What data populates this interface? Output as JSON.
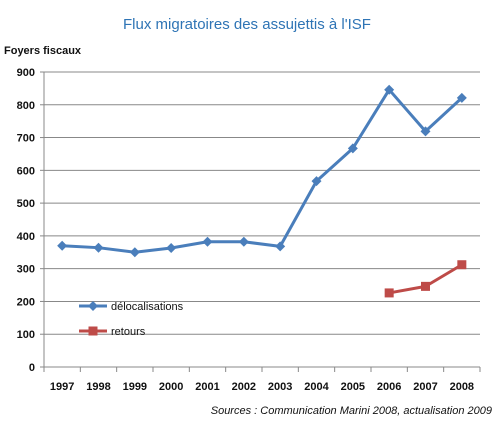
{
  "chart_data": {
    "type": "line",
    "title": "Flux migratoires des assujettis à l'ISF",
    "ylabel": "Foyers fiscaux",
    "xlabel": "",
    "source": "Sources : Communication Marini 2008, actualisation 2009",
    "categories": [
      "1997",
      "1998",
      "1999",
      "2000",
      "2001",
      "2002",
      "2003",
      "2004",
      "2005",
      "2006",
      "2007",
      "2008"
    ],
    "yticks": [
      0,
      100,
      200,
      300,
      400,
      500,
      600,
      700,
      800,
      900
    ],
    "ylim": [
      0,
      900
    ],
    "grid": true,
    "legend_position": "bottom-left",
    "series": [
      {
        "name": "délocalisations",
        "color": "#4a7ebb",
        "marker": "diamond",
        "values": [
          370,
          364,
          350,
          363,
          382,
          382,
          368,
          567,
          667,
          846,
          719,
          821
        ]
      },
      {
        "name": "retours",
        "color": "#be4b48",
        "marker": "square",
        "values": [
          null,
          null,
          null,
          null,
          null,
          null,
          null,
          null,
          null,
          226,
          246,
          312
        ]
      }
    ]
  }
}
